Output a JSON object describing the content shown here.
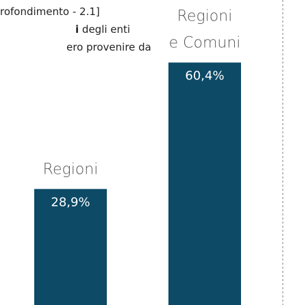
{
  "text_lines": [
    [
      {
        "text": "rofondimento - 2.1]"
      }
    ],
    [
      {
        "text": "i",
        "bold": true
      },
      {
        "text": " degli enti"
      }
    ],
    [
      {
        "text": "ero provenire da"
      }
    ]
  ],
  "chart_data": {
    "type": "bar",
    "categories": [
      [
        "Regioni"
      ],
      [
        "Regioni",
        "e Comuni"
      ]
    ],
    "values": [
      28.9,
      60.4
    ],
    "value_labels": [
      "28,9%",
      "60,4%"
    ],
    "color": "#0c4a66"
  }
}
